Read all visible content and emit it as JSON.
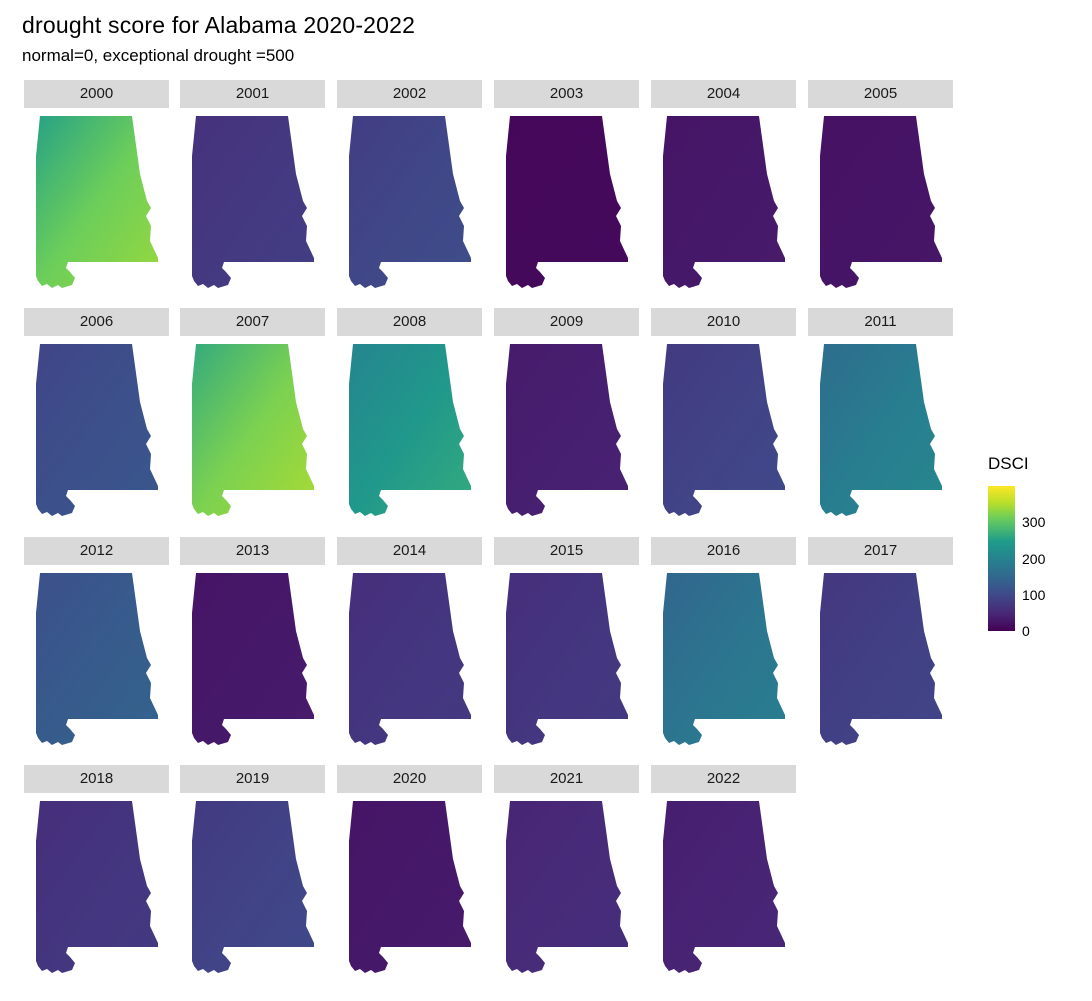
{
  "chart_data": {
    "type": "heatmap",
    "title": "drought score for Alabama 2020-2022",
    "subtitle": "normal=0, exceptional drought =500",
    "facet_labels": [
      "2000",
      "2001",
      "2002",
      "2003",
      "2004",
      "2005",
      "2006",
      "2007",
      "2008",
      "2009",
      "2010",
      "2011",
      "2012",
      "2013",
      "2014",
      "2015",
      "2016",
      "2017",
      "2018",
      "2019",
      "2020",
      "2021",
      "2022"
    ],
    "facet_values": [
      {
        "year": "2000",
        "mean_dsci": 300
      },
      {
        "year": "2001",
        "mean_dsci": 75
      },
      {
        "year": "2002",
        "mean_dsci": 95
      },
      {
        "year": "2003",
        "mean_dsci": 10
      },
      {
        "year": "2004",
        "mean_dsci": 30
      },
      {
        "year": "2005",
        "mean_dsci": 25
      },
      {
        "year": "2006",
        "mean_dsci": 110
      },
      {
        "year": "2007",
        "mean_dsci": 310
      },
      {
        "year": "2008",
        "mean_dsci": 240
      },
      {
        "year": "2009",
        "mean_dsci": 40
      },
      {
        "year": "2010",
        "mean_dsci": 90
      },
      {
        "year": "2011",
        "mean_dsci": 190
      },
      {
        "year": "2012",
        "mean_dsci": 130
      },
      {
        "year": "2013",
        "mean_dsci": 30
      },
      {
        "year": "2014",
        "mean_dsci": 70
      },
      {
        "year": "2015",
        "mean_dsci": 70
      },
      {
        "year": "2016",
        "mean_dsci": 175
      },
      {
        "year": "2017",
        "mean_dsci": 85
      },
      {
        "year": "2018",
        "mean_dsci": 70
      },
      {
        "year": "2019",
        "mean_dsci": 90
      },
      {
        "year": "2020",
        "mean_dsci": 30
      },
      {
        "year": "2021",
        "mean_dsci": 55
      },
      {
        "year": "2022",
        "mean_dsci": 45
      }
    ],
    "legend": {
      "title": "DSCI",
      "ticks": [
        "300",
        "200",
        "100",
        "0"
      ],
      "tick_values": [
        300,
        200,
        100,
        0
      ],
      "range": [
        0,
        400
      ],
      "placement": "right"
    },
    "colorscale": [
      "#440154",
      "#482777",
      "#3f4a8a",
      "#31678e",
      "#26838f",
      "#1f9d8a",
      "#6cce5a",
      "#b6de2b",
      "#fde725"
    ]
  }
}
